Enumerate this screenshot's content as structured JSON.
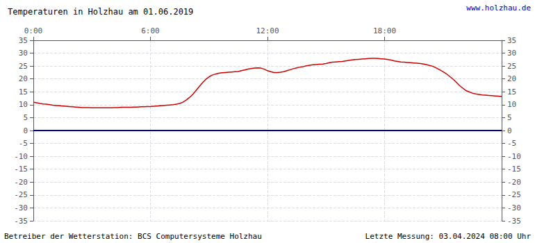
{
  "chart_data": {
    "type": "line",
    "title": "Temperaturen in Holzhau am 01.06.2019",
    "annotations": [
      {
        "text": "www.holzhau.de",
        "color": "#0000cc"
      },
      {
        "text": "Betreiber der Wetterstation: BCS Computersysteme Holzhau",
        "color": "#000000"
      },
      {
        "text": "Letzte Messung: 03.04.2024 08:00 Uhr",
        "color": "#000000"
      }
    ],
    "x": [
      0,
      2,
      4,
      6,
      8,
      10,
      12,
      14,
      16,
      18,
      20,
      22,
      24,
      26,
      28,
      30,
      32,
      34,
      36,
      38,
      40,
      42,
      44,
      46,
      48,
      50,
      52,
      54,
      56,
      58,
      60,
      62,
      64,
      66,
      68,
      70,
      72,
      74,
      76,
      78,
      80,
      82,
      84,
      86,
      88,
      90,
      92,
      94,
      96,
      98,
      100,
      102,
      104,
      106,
      108,
      110,
      112,
      114,
      116,
      118,
      120,
      122,
      124,
      126,
      128,
      130,
      132,
      134,
      136,
      138,
      140,
      142,
      144,
      146,
      148,
      150,
      152,
      154,
      156,
      158,
      160,
      162,
      164,
      166,
      168,
      170,
      172,
      174,
      176,
      178,
      180,
      182,
      184,
      186,
      188,
      190,
      192,
      194,
      196,
      198,
      200,
      202,
      204,
      206,
      208,
      210,
      212,
      214,
      216,
      218,
      220,
      222,
      224,
      226,
      228,
      230,
      232,
      234,
      236,
      238,
      240,
      242,
      244,
      246,
      248,
      250,
      252,
      254,
      256,
      258,
      260,
      262,
      264,
      266,
      268,
      270,
      272,
      274,
      276,
      278,
      280,
      282,
      284,
      286,
      288
    ],
    "values": [
      11.0,
      10.8,
      10.5,
      10.3,
      10.2,
      10.0,
      9.8,
      9.7,
      9.6,
      9.5,
      9.4,
      9.3,
      9.2,
      9.1,
      9.0,
      8.9,
      8.9,
      8.9,
      8.8,
      8.8,
      8.8,
      8.8,
      8.8,
      8.8,
      8.8,
      8.9,
      8.9,
      9.0,
      9.0,
      9.0,
      9.0,
      9.1,
      9.1,
      9.2,
      9.2,
      9.3,
      9.3,
      9.4,
      9.5,
      9.6,
      9.7,
      9.8,
      9.9,
      10.0,
      10.2,
      10.5,
      11.0,
      11.8,
      12.8,
      14.0,
      15.5,
      17.0,
      18.5,
      19.8,
      20.8,
      21.5,
      21.9,
      22.2,
      22.4,
      22.5,
      22.6,
      22.7,
      22.8,
      22.9,
      23.2,
      23.5,
      23.8,
      24.0,
      24.2,
      24.3,
      24.2,
      23.8,
      23.2,
      22.8,
      22.5,
      22.5,
      22.6,
      22.8,
      23.2,
      23.6,
      24.0,
      24.3,
      24.6,
      24.8,
      25.1,
      25.3,
      25.5,
      25.6,
      25.7,
      25.8,
      26.0,
      26.3,
      26.5,
      26.6,
      26.7,
      26.8,
      27.0,
      27.2,
      27.4,
      27.5,
      27.6,
      27.7,
      27.8,
      27.9,
      28.0,
      28.0,
      27.9,
      27.8,
      27.7,
      27.5,
      27.3,
      27.0,
      26.8,
      26.6,
      26.5,
      26.4,
      26.3,
      26.2,
      26.1,
      26.0,
      25.8,
      25.5,
      25.2,
      24.8,
      24.2,
      23.5,
      22.8,
      22.0,
      21.0,
      20.0,
      18.8,
      17.5,
      16.5,
      15.5,
      15.0,
      14.5,
      14.2,
      14.0,
      13.8,
      13.7,
      13.6,
      13.5,
      13.4,
      13.3,
      13.2
    ],
    "color": "#cc0000",
    "reference_lines": [
      {
        "value": 0,
        "color": "#00008b"
      }
    ],
    "xlim": [
      0,
      288
    ],
    "xticks": [
      {
        "value": 0,
        "label": "0:00"
      },
      {
        "value": 72,
        "label": "6:00"
      },
      {
        "value": 144,
        "label": "12:00"
      },
      {
        "value": 216,
        "label": "18:00"
      }
    ],
    "ylim": [
      -35,
      35
    ],
    "yticks": [
      -35,
      -30,
      -25,
      -20,
      -15,
      -10,
      -5,
      0,
      5,
      10,
      15,
      20,
      25,
      30,
      35
    ],
    "y2lim": [
      -35,
      35
    ],
    "y2ticks": [
      -35,
      -30,
      -25,
      -20,
      -15,
      -10,
      -5,
      0,
      5,
      10,
      15,
      20,
      25,
      30,
      35
    ],
    "grid": true
  }
}
